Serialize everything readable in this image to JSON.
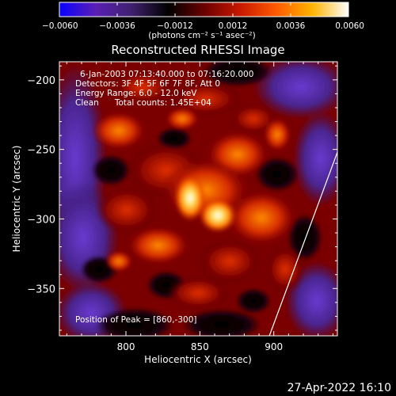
{
  "colorbar": {
    "ticks": [
      {
        "value": -0.006,
        "label": "−0.0060"
      },
      {
        "value": -0.0036,
        "label": "−0.0036"
      },
      {
        "value": -0.0012,
        "label": "−0.0012"
      },
      {
        "value": 0.0012,
        "label": "0.0012"
      },
      {
        "value": 0.0036,
        "label": "0.0036"
      },
      {
        "value": 0.006,
        "label": "0.0060"
      }
    ],
    "range": [
      -0.006,
      0.006
    ],
    "unit": "(photons cm⁻² s⁻¹ asec⁻²)",
    "colormap": [
      "#0a00ff",
      "#5a1fb5",
      "#40206e",
      "#000000",
      "#6a0000",
      "#c81800",
      "#ff5a00",
      "#ffb400",
      "#ffffff"
    ]
  },
  "chart_data": {
    "type": "heatmap",
    "title": "Reconstructed RHESSI Image",
    "xlabel": "Heliocentric X (arcsec)",
    "ylabel": "Heliocentric Y (arcsec)",
    "xlim": [
      755,
      943
    ],
    "ylim": [
      -384,
      -187
    ],
    "x_ticks": [
      {
        "value": 800,
        "label": "800"
      },
      {
        "value": 850,
        "label": "850"
      },
      {
        "value": 900,
        "label": "900"
      }
    ],
    "y_ticks": [
      {
        "value": -200,
        "label": "−200"
      },
      {
        "value": -250,
        "label": "−250"
      },
      {
        "value": -300,
        "label": "−300"
      },
      {
        "value": -350,
        "label": "−350"
      }
    ],
    "annotations": [
      "6-Jan-2003 07:13:40.000 to 07:16:20.000",
      "Detectors: 3F 4F 5F 6F 7F 8F, Att 0",
      "Energy Range: 6.0 - 12.0 keV",
      "Clean      Total counts: 1.45E+04"
    ],
    "peak_label": "Position of Peak = [860,-300]",
    "peak": {
      "x": 860,
      "y": -300
    },
    "limb_line": [
      {
        "x": 897,
        "y": -384
      },
      {
        "x": 943,
        "y": -252
      }
    ]
  },
  "footer": {
    "timestamp": "27-Apr-2022 16:10"
  }
}
